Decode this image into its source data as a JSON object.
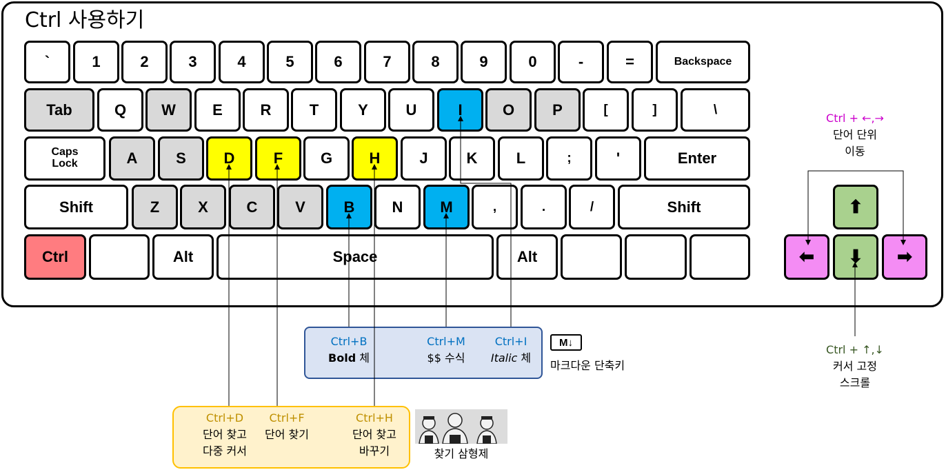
{
  "title": "Ctrl 사용하기",
  "rows": {
    "row1": [
      "`",
      "1",
      "2",
      "3",
      "4",
      "5",
      "6",
      "7",
      "8",
      "9",
      "0",
      "-",
      "=",
      "Backspace"
    ],
    "row2": [
      "Tab",
      "Q",
      "W",
      "E",
      "R",
      "T",
      "Y",
      "U",
      "I",
      "O",
      "P",
      "[",
      "]",
      "\\"
    ],
    "row3": [
      "Caps",
      "Lock",
      "A",
      "S",
      "D",
      "F",
      "G",
      "H",
      "J",
      "K",
      "L",
      ";",
      "'",
      "Enter"
    ],
    "row4": [
      "Shift",
      "Z",
      "X",
      "C",
      "V",
      "B",
      "N",
      "M",
      ",",
      ".",
      "/",
      "Shift"
    ],
    "row5": [
      "Ctrl",
      "",
      "Alt",
      "Space",
      "Alt",
      "",
      "",
      ""
    ]
  },
  "arrows": {
    "up": "⬆",
    "down": "⬇",
    "left": "⬅",
    "right": "➡"
  },
  "colors": {
    "gray": "#d9d9d9",
    "yellow": "#ffff00",
    "blue": "#00b0f0",
    "red": "#ff7c80",
    "pink": "#f48cf4",
    "green": "#a9d18e"
  },
  "markdown_box": {
    "bold": {
      "shortcut": "Ctrl+B",
      "label_em": "Bold",
      "label_rest": " 체"
    },
    "math": {
      "shortcut": "Ctrl+M",
      "label": "$$ 수식"
    },
    "italic": {
      "shortcut": "Ctrl+I",
      "label_em": "Italic",
      "label_rest": " 체"
    },
    "icon_text": "M↓",
    "caption": "마크다운 단축키"
  },
  "find_box": {
    "d": {
      "shortcut": "Ctrl+D",
      "line1": "단어 찾고",
      "line2": "다중 커서"
    },
    "f": {
      "shortcut": "Ctrl+F",
      "line1": "단어 찾기"
    },
    "h": {
      "shortcut": "Ctrl+H",
      "line1": "단어 찾고",
      "line2": "바꾸기"
    },
    "caption": "찾기 삼형제"
  },
  "word_move": {
    "shortcut": "Ctrl + ←,→",
    "line1": "단어 단위",
    "line2": "이동"
  },
  "cursor_fixed": {
    "shortcut": "Ctrl + ↑,↓",
    "line1": "커서 고정",
    "line2": "스크롤"
  }
}
